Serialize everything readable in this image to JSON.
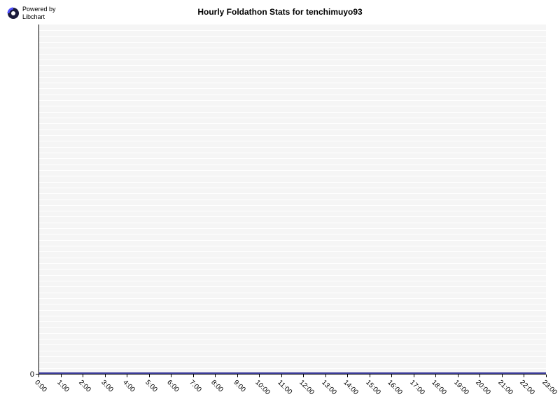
{
  "logo": {
    "powered_by": "Powered by",
    "libchart": "Libchart",
    "icon_bg": "#1a1a3a",
    "icon_arc": "#5050ff"
  },
  "chart": {
    "type": "line",
    "title": "Hourly Foldathon Stats for tenchimuyo93",
    "title_fontsize": 12,
    "background_color": "#ffffff",
    "plot_bg_color": "#f5f5f5",
    "grid_color": "#ffffff",
    "axis_color": "#000000",
    "line_color": "#4040a0",
    "line_width": 2,
    "categories": [
      "0:00",
      "1:00",
      "2:00",
      "3:00",
      "4:00",
      "5:00",
      "6:00",
      "7:00",
      "8:00",
      "9:00",
      "10:00",
      "11:00",
      "12:00",
      "13:00",
      "14:00",
      "15:00",
      "16:00",
      "17:00",
      "18:00",
      "19:00",
      "20:00",
      "21:00",
      "22:00",
      "23:00"
    ],
    "values": [
      0,
      0,
      0,
      0,
      0,
      0,
      0,
      0,
      0,
      0,
      0,
      0,
      0,
      0,
      0,
      0,
      0,
      0,
      0,
      0,
      0,
      0,
      0,
      0
    ],
    "ylim": [
      0,
      0
    ],
    "y_ticks": [
      0
    ],
    "x_label_rotation": 45,
    "x_label_fontsize": 10,
    "y_label_fontsize": 11,
    "gridline_count": 60
  }
}
